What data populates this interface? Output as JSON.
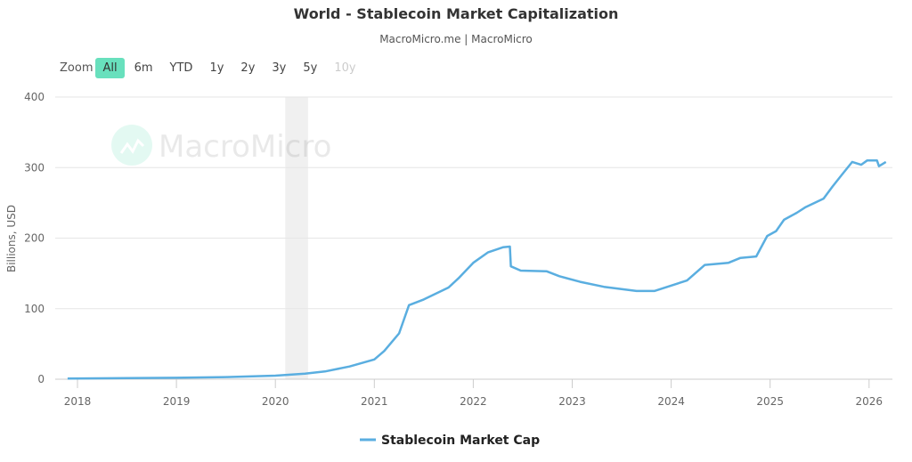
{
  "title": "World - Stablecoin Market Capitalization",
  "subtitle": "MacroMicro.me | MacroMicro",
  "watermark": "MacroMicro",
  "zoom": {
    "label": "Zoom",
    "buttons": [
      {
        "label": "All",
        "state": "active"
      },
      {
        "label": "6m",
        "state": "normal"
      },
      {
        "label": "YTD",
        "state": "normal"
      },
      {
        "label": "1y",
        "state": "normal"
      },
      {
        "label": "2y",
        "state": "normal"
      },
      {
        "label": "3y",
        "state": "normal"
      },
      {
        "label": "5y",
        "state": "normal"
      },
      {
        "label": "10y",
        "state": "disabled"
      }
    ]
  },
  "colors": {
    "series": "#5aaee0",
    "band": "#f0f0f0",
    "accent": "#68e0bd"
  },
  "chart_data": {
    "type": "line",
    "title": "World - Stablecoin Market Capitalization",
    "ylabel": "Billions, USD",
    "xlabel": "",
    "ylim": [
      0,
      400
    ],
    "yticks": [
      0,
      100,
      200,
      300,
      400
    ],
    "xticks": [
      "2018",
      "2019",
      "2020",
      "2021",
      "2022",
      "2023",
      "2024",
      "2025",
      "2026"
    ],
    "grid": true,
    "legend": "bottom",
    "shaded_band": [
      2020.1,
      2020.33
    ],
    "series": [
      {
        "name": "Stablecoin Market Cap",
        "x": [
          2017.9,
          2018.5,
          2019.0,
          2019.5,
          2020.0,
          2020.3,
          2020.5,
          2020.75,
          2021.0,
          2021.1,
          2021.25,
          2021.35,
          2021.5,
          2021.75,
          2021.85,
          2022.0,
          2022.15,
          2022.3,
          2022.37,
          2022.38,
          2022.48,
          2022.74,
          2022.87,
          2023.08,
          2023.32,
          2023.65,
          2023.83,
          2024.16,
          2024.34,
          2024.58,
          2024.7,
          2024.86,
          2024.97,
          2025.06,
          2025.14,
          2025.27,
          2025.36,
          2025.54,
          2025.63,
          2025.72,
          2025.83,
          2025.92,
          2025.98,
          2026.08,
          2026.1,
          2026.17
        ],
        "values": [
          1,
          1.5,
          2,
          3,
          5,
          8,
          11,
          18,
          28,
          40,
          65,
          105,
          113,
          130,
          143,
          165,
          180,
          187,
          188,
          160,
          154,
          153,
          146,
          138,
          131,
          125,
          125,
          140,
          162,
          165,
          172,
          174,
          203,
          210,
          226,
          236,
          244,
          256,
          273,
          289,
          308,
          304,
          310,
          310,
          302,
          308
        ]
      }
    ]
  }
}
